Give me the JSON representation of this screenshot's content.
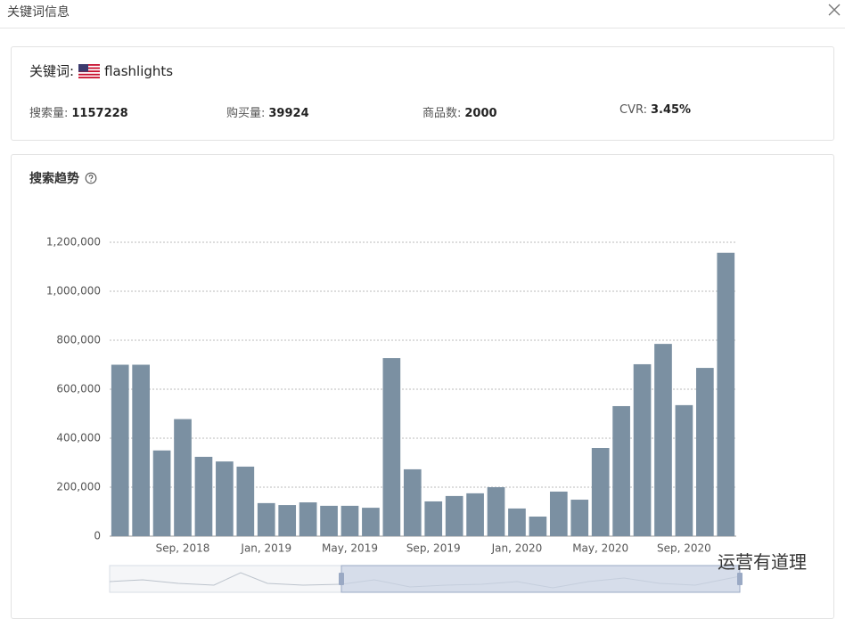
{
  "header": {
    "title": "关键词信息"
  },
  "keyword": {
    "label": "关键词:",
    "value": "flashlights"
  },
  "stats": [
    {
      "label": "搜索量:",
      "value": "1157228"
    },
    {
      "label": "购买量:",
      "value": "39924"
    },
    {
      "label": "商品数:",
      "value": "2000"
    },
    {
      "label": "CVR:",
      "value": "3.45%"
    }
  ],
  "watermark": "运营有道理",
  "chart_data": {
    "type": "bar",
    "title": "搜索趋势",
    "color": "#7b90a2",
    "categories": [
      null,
      null,
      null,
      "Sep, 2018",
      null,
      null,
      null,
      "Jan, 2019",
      null,
      null,
      null,
      "May, 2019",
      null,
      null,
      null,
      "Sep, 2019",
      null,
      null,
      null,
      "Jan, 2020",
      null,
      null,
      null,
      "May, 2020",
      null,
      null,
      null,
      "Sep, 2020",
      null,
      null
    ],
    "values": [
      700000,
      700000,
      350000,
      478000,
      324000,
      305000,
      284000,
      135000,
      127000,
      138000,
      124000,
      124000,
      116000,
      727000,
      273000,
      142000,
      164000,
      175000,
      200000,
      113000,
      80000,
      182000,
      149000,
      360000,
      531000,
      702000,
      785000,
      535000,
      687000,
      1157228
    ],
    "ylim": [
      0,
      1200000
    ],
    "yticks": [
      0,
      {
        "value": 200000,
        "label": "200,000"
      },
      {
        "value": 400000,
        "label": "400,000"
      },
      {
        "value": 600000,
        "label": "600,000"
      },
      {
        "value": 800000,
        "label": "800,000"
      },
      {
        "value": 1000000,
        "label": "1,000,000"
      },
      {
        "value": 1200000,
        "label": "1,200,000"
      }
    ],
    "grid": true
  }
}
